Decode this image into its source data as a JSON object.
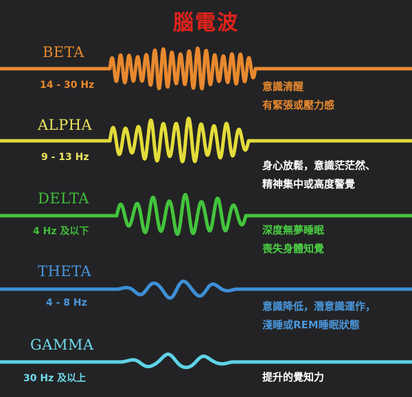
{
  "title": "腦電波",
  "waves": [
    {
      "key": "beta",
      "name": "BETA",
      "freq": "14 - 30 Hz",
      "desc": [
        "意識清醒",
        "有緊張或壓力感"
      ],
      "color": "#e8892f",
      "text_color": "#e8892f",
      "desc_color": "#e8892f",
      "cycles": 17,
      "amplitude": 1.0
    },
    {
      "key": "alpha",
      "name": "ALPHA",
      "freq": "9 - 13 Hz",
      "desc": [
        "身心放鬆，意識茫茫然、",
        "精神集中或高度警覺"
      ],
      "color": "#e3dc3a",
      "text_color": "#ece55e",
      "desc_color": "#ffffff",
      "cycles": 11,
      "amplitude": 1.0
    },
    {
      "key": "delta",
      "name": "DELTA",
      "freq": "4 Hz 及以下",
      "desc": [
        "深度無夢睡眠",
        "喪失身體知覺"
      ],
      "color": "#43c43c",
      "text_color": "#3fbe3a",
      "desc_color": "#4bcf43",
      "cycles": 8,
      "amplitude": 1.0
    },
    {
      "key": "theta",
      "name": "THETA",
      "freq": "4 - 8 Hz",
      "desc": [
        "意識降低，潛意識運作，",
        "淺睡或REM睡眠狀態"
      ],
      "color": "#3d8fd6",
      "text_color": "#4a97dc",
      "desc_color": "#4a97dc",
      "cycles": 4,
      "amplitude": 0.3
    },
    {
      "key": "gamma",
      "name": "GAMMA",
      "freq": "30 Hz 及以上",
      "desc": [
        "提升的覺知力"
      ],
      "color": "#5fd3e6",
      "text_color": "#6fdaeb",
      "desc_color": "#ffffff",
      "cycles": 3,
      "amplitude": 0.18
    }
  ]
}
